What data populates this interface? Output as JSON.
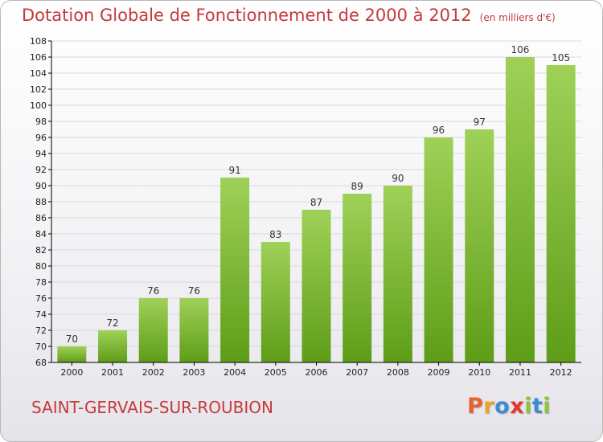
{
  "header": {
    "title": "Dotation Globale de Fonctionnement de 2000 à 2012",
    "subtitle": "(en milliers d'€)"
  },
  "footer": {
    "commune": "SAINT-GERVAIS-SUR-ROUBION",
    "brand_letters": [
      "P",
      "r",
      "o",
      "x",
      "i",
      "t",
      "i"
    ],
    "brand_colors": [
      "#e8632b",
      "#f0a21f",
      "#3a8fd1",
      "#e23b2e",
      "#8cc43a",
      "#3a8fd1",
      "#8cc43a"
    ]
  },
  "colors": {
    "title": "#c43a3a",
    "bar_top": "#9fd158",
    "bar_bottom": "#5e9d18",
    "grid": "#d9d9d9",
    "axis": "#000000"
  },
  "chart_data": {
    "type": "bar",
    "categories": [
      "2000",
      "2001",
      "2002",
      "2003",
      "2004",
      "2005",
      "2006",
      "2007",
      "2008",
      "2009",
      "2010",
      "2011",
      "2012"
    ],
    "values": [
      70,
      72,
      76,
      76,
      91,
      83,
      87,
      89,
      90,
      96,
      97,
      106,
      105
    ],
    "ylim": [
      68,
      108
    ],
    "yticks": [
      68,
      70,
      72,
      74,
      76,
      78,
      80,
      82,
      84,
      86,
      88,
      90,
      92,
      94,
      96,
      98,
      100,
      102,
      104,
      106,
      108
    ],
    "grid": true,
    "legend": "none"
  }
}
